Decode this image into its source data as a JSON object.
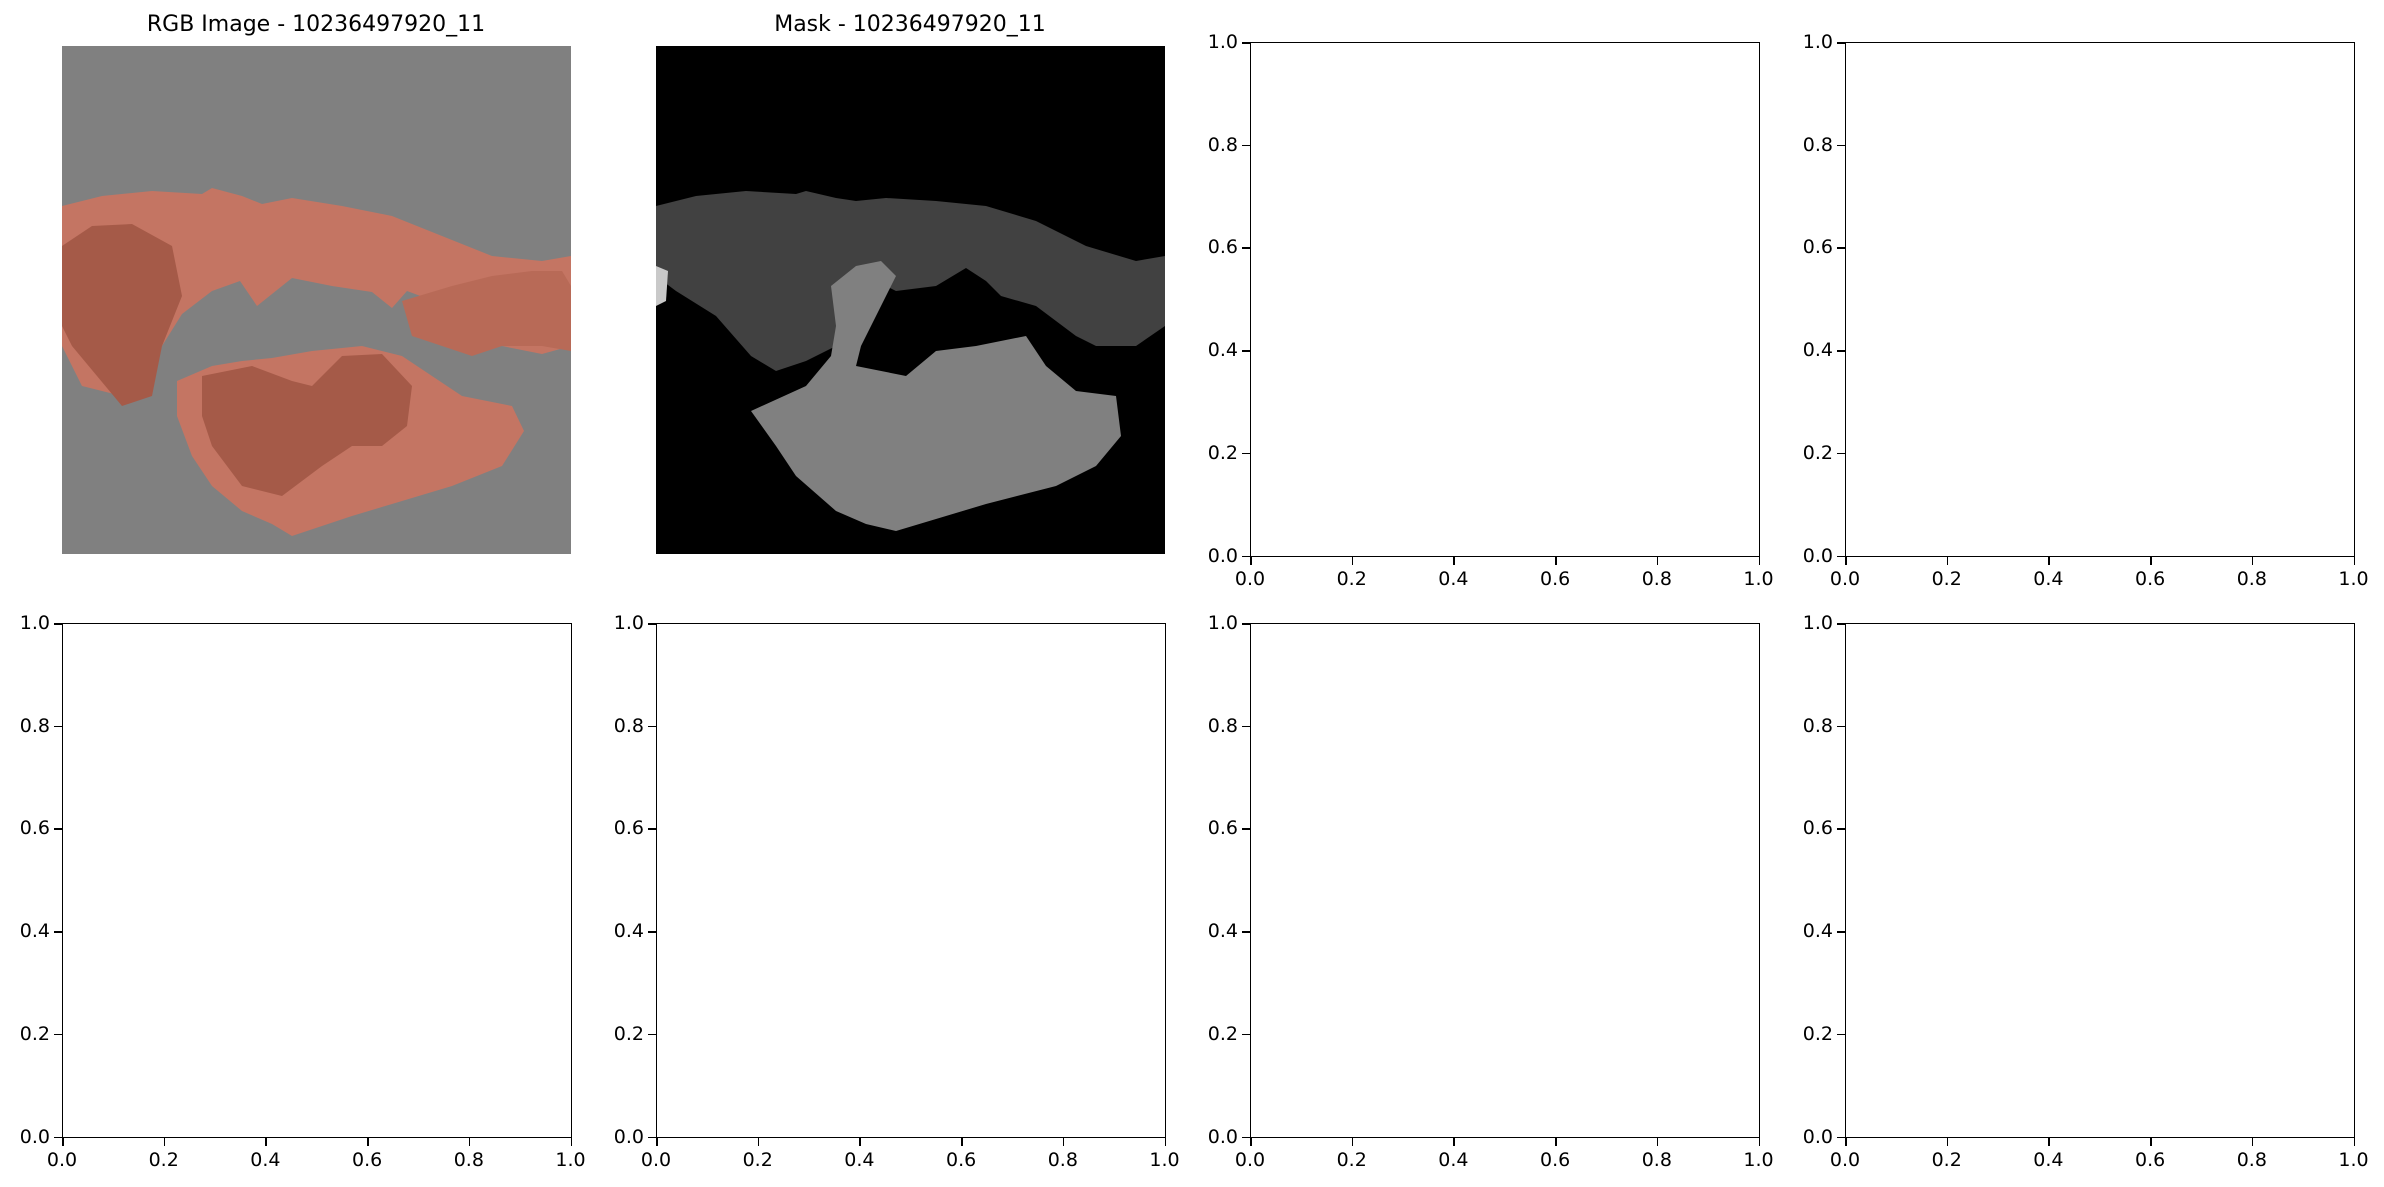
{
  "figure": {
    "layout": "2x4 grid of subplots"
  },
  "chart_data": [
    {
      "type": "image",
      "title": "RGB Image - 10236497920_11",
      "description": "3D rendered dental arch segment (salmon/terracotta colored teeth and gums) on a gray background",
      "colors": {
        "background": "#808080",
        "object": "#c97560",
        "object_shade": "#a8594a"
      },
      "axes_visible": false
    },
    {
      "type": "image",
      "title": "Mask - 10236497920_11",
      "description": "Segmentation mask: black background with dark gray, medium gray, and light gray labeled regions",
      "colors": {
        "background": "#000000",
        "region_dark": "#404040",
        "region_mid": "#808080",
        "region_light": "#c8c8c8"
      },
      "axes_visible": false
    },
    {
      "type": "empty_axes",
      "xlim": [
        0,
        1
      ],
      "ylim": [
        0,
        1
      ],
      "x_ticks": [
        "0.0",
        "0.2",
        "0.4",
        "0.6",
        "0.8",
        "1.0"
      ],
      "y_ticks": [
        "0.0",
        "0.2",
        "0.4",
        "0.6",
        "0.8",
        "1.0"
      ]
    },
    {
      "type": "empty_axes",
      "xlim": [
        0,
        1
      ],
      "ylim": [
        0,
        1
      ],
      "x_ticks": [
        "0.0",
        "0.2",
        "0.4",
        "0.6",
        "0.8",
        "1.0"
      ],
      "y_ticks": [
        "0.0",
        "0.2",
        "0.4",
        "0.6",
        "0.8",
        "1.0"
      ]
    },
    {
      "type": "empty_axes",
      "xlim": [
        0,
        1
      ],
      "ylim": [
        0,
        1
      ],
      "x_ticks": [
        "0.0",
        "0.2",
        "0.4",
        "0.6",
        "0.8",
        "1.0"
      ],
      "y_ticks": [
        "0.0",
        "0.2",
        "0.4",
        "0.6",
        "0.8",
        "1.0"
      ]
    },
    {
      "type": "empty_axes",
      "xlim": [
        0,
        1
      ],
      "ylim": [
        0,
        1
      ],
      "x_ticks": [
        "0.0",
        "0.2",
        "0.4",
        "0.6",
        "0.8",
        "1.0"
      ],
      "y_ticks": [
        "0.0",
        "0.2",
        "0.4",
        "0.6",
        "0.8",
        "1.0"
      ]
    },
    {
      "type": "empty_axes",
      "xlim": [
        0,
        1
      ],
      "ylim": [
        0,
        1
      ],
      "x_ticks": [
        "0.0",
        "0.2",
        "0.4",
        "0.6",
        "0.8",
        "1.0"
      ],
      "y_ticks": [
        "0.0",
        "0.2",
        "0.4",
        "0.6",
        "0.8",
        "1.0"
      ]
    },
    {
      "type": "empty_axes",
      "xlim": [
        0,
        1
      ],
      "ylim": [
        0,
        1
      ],
      "x_ticks": [
        "0.0",
        "0.2",
        "0.4",
        "0.6",
        "0.8",
        "1.0"
      ],
      "y_ticks": [
        "0.0",
        "0.2",
        "0.4",
        "0.6",
        "0.8",
        "1.0"
      ]
    }
  ]
}
